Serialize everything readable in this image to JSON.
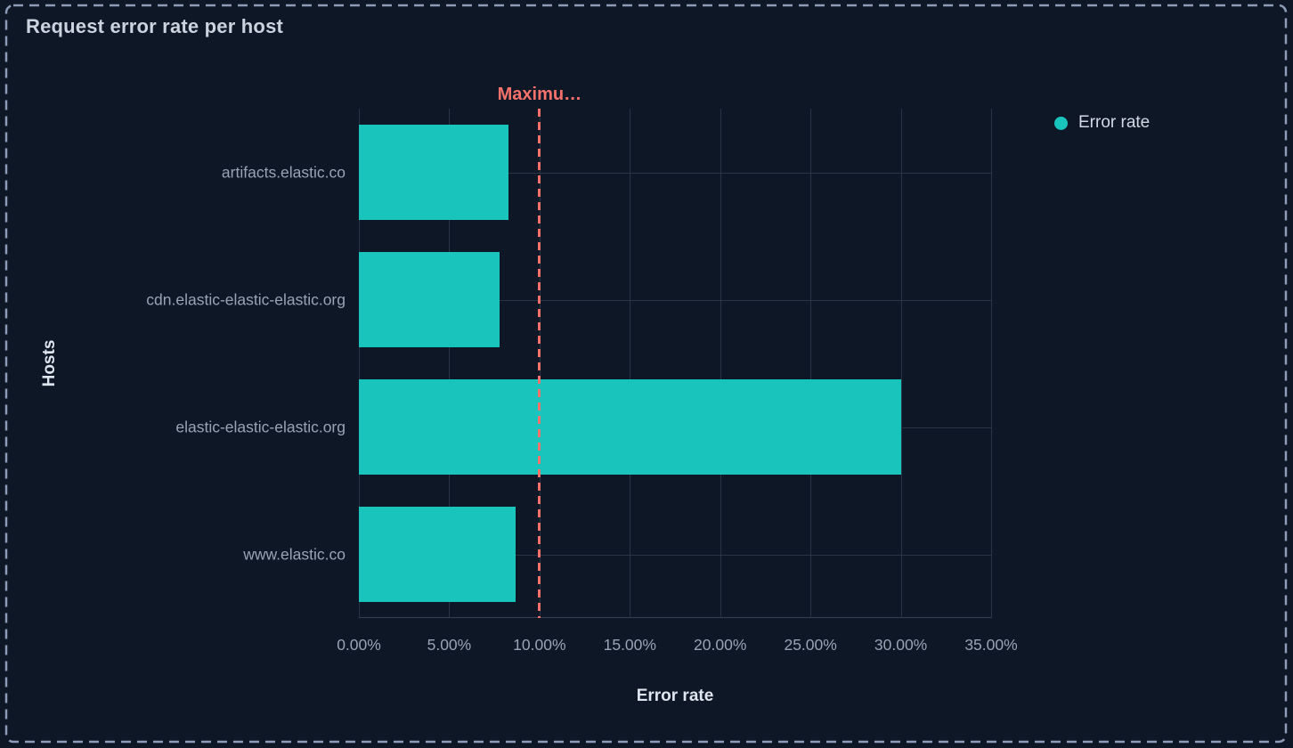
{
  "panel": {
    "title": "Request error rate per host",
    "background_color": "#0e1726",
    "border_color": "#8c9cb8",
    "gridline_color": "#2a3447"
  },
  "legend": {
    "position": "top-right",
    "items": [
      {
        "label": "Error rate",
        "color": "#19c4bd"
      }
    ]
  },
  "chart_data": {
    "type": "bar",
    "orientation": "horizontal",
    "title": "Request error rate per host",
    "categories": [
      "artifacts.elastic.co",
      "cdn.elastic-elastic-elastic.org",
      "elastic-elastic-elastic.org",
      "www.elastic.co"
    ],
    "series": [
      {
        "name": "Error rate",
        "values": [
          8.3,
          7.8,
          30.0,
          8.7
        ],
        "unit": "%",
        "color": "#19c4bd"
      }
    ],
    "xlabel": "Error rate",
    "ylabel": "Hosts",
    "xlim": [
      0,
      35
    ],
    "x_ticks": [
      0,
      5,
      10,
      15,
      20,
      25,
      30,
      35
    ],
    "x_tick_labels": [
      "0.00%",
      "5.00%",
      "10.00%",
      "15.00%",
      "20.00%",
      "25.00%",
      "30.00%",
      "35.00%"
    ],
    "grid": true,
    "threshold": {
      "label": "Maximu…",
      "value": 10,
      "color": "#f6726b",
      "style": "dashed"
    }
  }
}
